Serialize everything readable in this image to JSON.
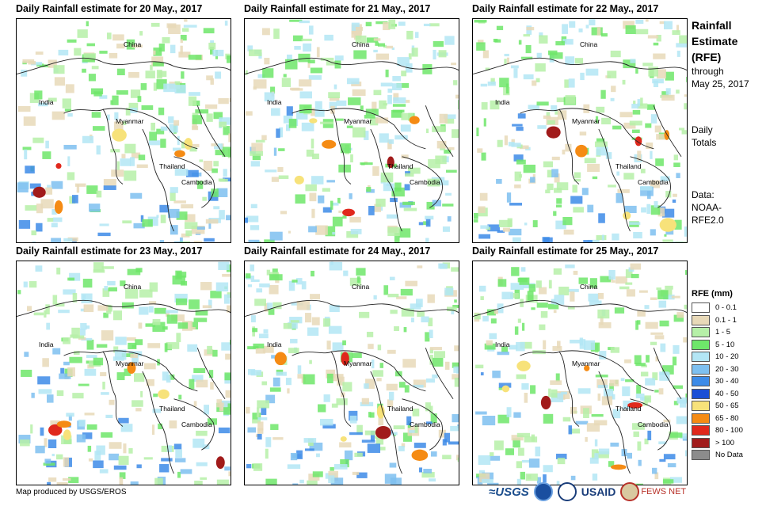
{
  "panels": [
    {
      "title": "Daily Rainfall estimate for 20 May., 2017",
      "labels": {
        "china": "China",
        "india": "India",
        "myanmar": "Myanmar",
        "thailand": "Thailand",
        "cambodia": "Cambodia"
      }
    },
    {
      "title": "Daily Rainfall estimate for 21 May., 2017",
      "labels": {
        "china": "China",
        "india": "India",
        "myanmar": "Myanmar",
        "thailand": "Thailand",
        "cambodia": "Cambodia"
      }
    },
    {
      "title": "Daily Rainfall estimate for 22 May., 2017",
      "labels": {
        "china": "China",
        "india": "India",
        "myanmar": "Myanmar",
        "thailand": "Thailand",
        "cambodia": "Cambodia"
      }
    },
    {
      "title": "Daily Rainfall estimate for 23 May., 2017",
      "labels": {
        "china": "China",
        "india": "India",
        "myanmar": "Myanmar",
        "thailand": "Thailand",
        "cambodia": "Cambodia"
      }
    },
    {
      "title": "Daily Rainfall estimate for 24 May., 2017",
      "labels": {
        "china": "China",
        "india": "India",
        "myanmar": "Myanmar",
        "thailand": "Thailand",
        "cambodia": "Cambodia"
      }
    },
    {
      "title": "Daily Rainfall estimate for 25 May., 2017",
      "labels": {
        "china": "China",
        "india": "India",
        "myanmar": "Myanmar",
        "thailand": "Thailand",
        "cambodia": "Cambodia"
      }
    }
  ],
  "sidebar": {
    "title_line1": "Rainfall",
    "title_line2": "Estimate",
    "title_line3": "(RFE)",
    "through": "through",
    "date": "May 25, 2017",
    "daily": "Daily",
    "totals": "Totals",
    "data_label": "Data:",
    "source1": "NOAA-",
    "source2": "RFE2.0"
  },
  "legend": {
    "title": "RFE (mm)",
    "items": [
      {
        "label": "0 - 0.1",
        "color": "#ffffff"
      },
      {
        "label": "0.1 - 1",
        "color": "#e8d9b8"
      },
      {
        "label": "1 - 5",
        "color": "#b6f0a8"
      },
      {
        "label": "5 - 10",
        "color": "#6ee66a"
      },
      {
        "label": "10 - 20",
        "color": "#b3e6f5"
      },
      {
        "label": "20 - 30",
        "color": "#7ec0f0"
      },
      {
        "label": "30 - 40",
        "color": "#3d8be8"
      },
      {
        "label": "40 - 50",
        "color": "#1a4fd6"
      },
      {
        "label": "50 - 65",
        "color": "#f7e27a"
      },
      {
        "label": "65 - 80",
        "color": "#f58b14"
      },
      {
        "label": "80 - 100",
        "color": "#e0281c"
      },
      {
        "label": "> 100",
        "color": "#a11b1b"
      },
      {
        "label": "No Data",
        "color": "#8c8c8c"
      }
    ]
  },
  "footer": "Map produced by USGS/EROS",
  "logos": {
    "usgs": "≈USGS",
    "usaid": "USAID",
    "fews": "FEWS NET"
  }
}
